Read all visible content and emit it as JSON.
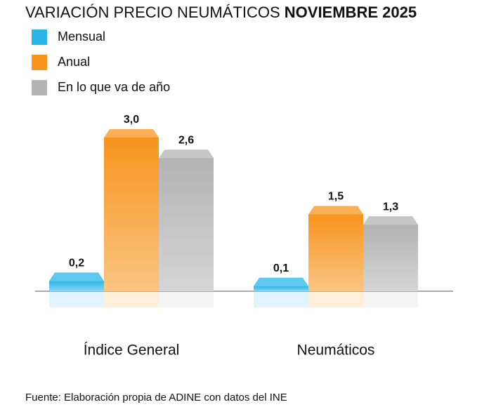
{
  "chart_data": {
    "type": "bar",
    "title": "VARIACIÓN PRECIO NEUMÁTICOS",
    "title_emphasis": "NOVIEMBRE 2025",
    "source": "Fuente: Elaboración propia de ADINE con datos del INE",
    "categories": [
      "Índice General",
      "Neumáticos"
    ],
    "series": [
      {
        "name": "Mensual",
        "color": "#29b5e8",
        "values": [
          0.2,
          0.1
        ],
        "value_labels": [
          "0,2",
          "0,1"
        ]
      },
      {
        "name": "Anual",
        "color": "#f7941d",
        "values": [
          3.0,
          1.5
        ],
        "value_labels": [
          "3,0",
          "1,5"
        ]
      },
      {
        "name": "En lo que va de año",
        "color": "#b3b3b3",
        "values": [
          2.6,
          1.3
        ],
        "value_labels": [
          "2,6",
          "1,3"
        ]
      }
    ]
  }
}
